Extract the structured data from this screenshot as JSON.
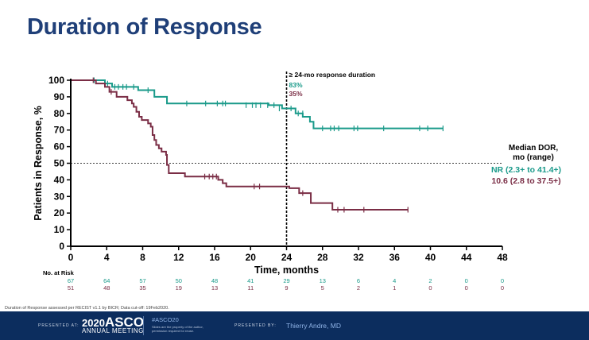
{
  "slide": {
    "title": "Duration of Response",
    "footnote": "Duration of Response assessed per RECIST v1.1 by BICR; Data cut-off: 19Feb2020."
  },
  "footer": {
    "presented_at": "PRESENTED AT:",
    "meeting_year": "2020",
    "meeting_name": "ASCO",
    "meeting_sub": "ANNUAL MEETING",
    "hashtag": "#ASCO20",
    "disclaimer": "Slides are the property of the author, permission required for reuse.",
    "presented_by": "PRESENTED BY:",
    "presenter": "Thierry Andre, MD"
  },
  "colors": {
    "title": "#1f3f78",
    "series_nr": "#1a9a8a",
    "series_106": "#7a2d45",
    "footer_bg": "#0c2d5e",
    "footer_accent": "#8fb3e6"
  },
  "chart_data": {
    "type": "line",
    "ylabel": "Patients in Response, %",
    "xlabel": "Time, months",
    "xlim": [
      0,
      48
    ],
    "ylim": [
      0,
      100
    ],
    "x_ticks": [
      "0",
      "4",
      "8",
      "12",
      "16",
      "20",
      "24",
      "28",
      "32",
      "36",
      "40",
      "44",
      "48"
    ],
    "y_ticks": [
      "0",
      "10",
      "20",
      "30",
      "40",
      "50",
      "60",
      "70",
      "80",
      "90",
      "100"
    ],
    "reference_line_y": 50,
    "reference_line_x": 24,
    "annotation": {
      "title": "≥ 24-mo response duration",
      "values": [
        "83%",
        "35%"
      ]
    },
    "legend": {
      "title_line1": "Median DOR,",
      "title_line2": "mo (range)",
      "entries": [
        "NR (2.3+ to 41.4+)",
        "10.6 (2.8 to 37.5+)"
      ]
    },
    "series": [
      {
        "name": "NR (2.3+ to 41.4+)",
        "steps": [
          [
            0,
            100
          ],
          [
            3.8,
            98
          ],
          [
            4.6,
            96
          ],
          [
            6.5,
            96
          ],
          [
            7.5,
            94
          ],
          [
            9.3,
            90
          ],
          [
            10.7,
            86
          ],
          [
            19,
            86
          ],
          [
            22,
            85
          ],
          [
            23.5,
            83
          ],
          [
            25,
            80
          ],
          [
            25.8,
            78
          ],
          [
            26.6,
            75
          ],
          [
            27,
            71
          ],
          [
            41.4,
            71
          ]
        ],
        "censored": [
          [
            2.6,
            100
          ],
          [
            4.1,
            98
          ],
          [
            4.9,
            96
          ],
          [
            5.3,
            96
          ],
          [
            5.8,
            96
          ],
          [
            6.2,
            96
          ],
          [
            7,
            96
          ],
          [
            8.6,
            94
          ],
          [
            12.9,
            86
          ],
          [
            15,
            86
          ],
          [
            16.3,
            86
          ],
          [
            16.9,
            86
          ],
          [
            17.2,
            86
          ],
          [
            19.5,
            85
          ],
          [
            20.2,
            85
          ],
          [
            20.6,
            85
          ],
          [
            21.1,
            85
          ],
          [
            21.9,
            85
          ],
          [
            22.6,
            85
          ],
          [
            23.2,
            83
          ],
          [
            24.5,
            83
          ],
          [
            25.3,
            80
          ],
          [
            25.8,
            80
          ],
          [
            28,
            71
          ],
          [
            28.9,
            71
          ],
          [
            29.3,
            71
          ],
          [
            29.8,
            71
          ],
          [
            31.5,
            71
          ],
          [
            31.9,
            71
          ],
          [
            34.8,
            71
          ],
          [
            38.8,
            71
          ],
          [
            39.7,
            71
          ],
          [
            41.4,
            71
          ]
        ]
      },
      {
        "name": "10.6 (2.8 to 37.5+)",
        "steps": [
          [
            0,
            100
          ],
          [
            2.8,
            98
          ],
          [
            3.8,
            96
          ],
          [
            4.3,
            93
          ],
          [
            5.1,
            90
          ],
          [
            6.3,
            88
          ],
          [
            6.8,
            86
          ],
          [
            7,
            84
          ],
          [
            7.3,
            81
          ],
          [
            7.6,
            78
          ],
          [
            7.9,
            76
          ],
          [
            8.6,
            74
          ],
          [
            8.9,
            72
          ],
          [
            9.1,
            67
          ],
          [
            9.3,
            64
          ],
          [
            9.5,
            61
          ],
          [
            9.8,
            59
          ],
          [
            10.1,
            57
          ],
          [
            10.6,
            55
          ],
          [
            10.7,
            49
          ],
          [
            10.9,
            44
          ],
          [
            12.7,
            42
          ],
          [
            16.4,
            40
          ],
          [
            16.9,
            38
          ],
          [
            17.3,
            36
          ],
          [
            24.3,
            35
          ],
          [
            25.4,
            32
          ],
          [
            26.7,
            26
          ],
          [
            29.1,
            22
          ],
          [
            37.5,
            22
          ]
        ],
        "censored": [
          [
            2.5,
            100
          ],
          [
            4.5,
            93
          ],
          [
            14.9,
            42
          ],
          [
            15.4,
            42
          ],
          [
            15.8,
            42
          ],
          [
            16.2,
            42
          ],
          [
            20.4,
            36
          ],
          [
            21,
            36
          ],
          [
            25.8,
            32
          ],
          [
            29.7,
            22
          ],
          [
            30.4,
            22
          ],
          [
            32.6,
            22
          ],
          [
            37.5,
            22
          ]
        ]
      }
    ],
    "risk_table": {
      "label": "No. at Risk",
      "times": [
        0,
        4,
        8,
        12,
        16,
        20,
        24,
        28,
        32,
        36,
        40,
        44,
        48
      ],
      "rows": [
        {
          "name": "NR (2.3+ to 41.4+)",
          "values": [
            "67",
            "64",
            "57",
            "50",
            "48",
            "41",
            "29",
            "13",
            "6",
            "4",
            "2",
            "0",
            "0"
          ]
        },
        {
          "name": "10.6 (2.8 to 37.5+)",
          "values": [
            "51",
            "48",
            "35",
            "19",
            "13",
            "11",
            "9",
            "5",
            "2",
            "1",
            "0",
            "0",
            "0"
          ]
        }
      ]
    }
  }
}
